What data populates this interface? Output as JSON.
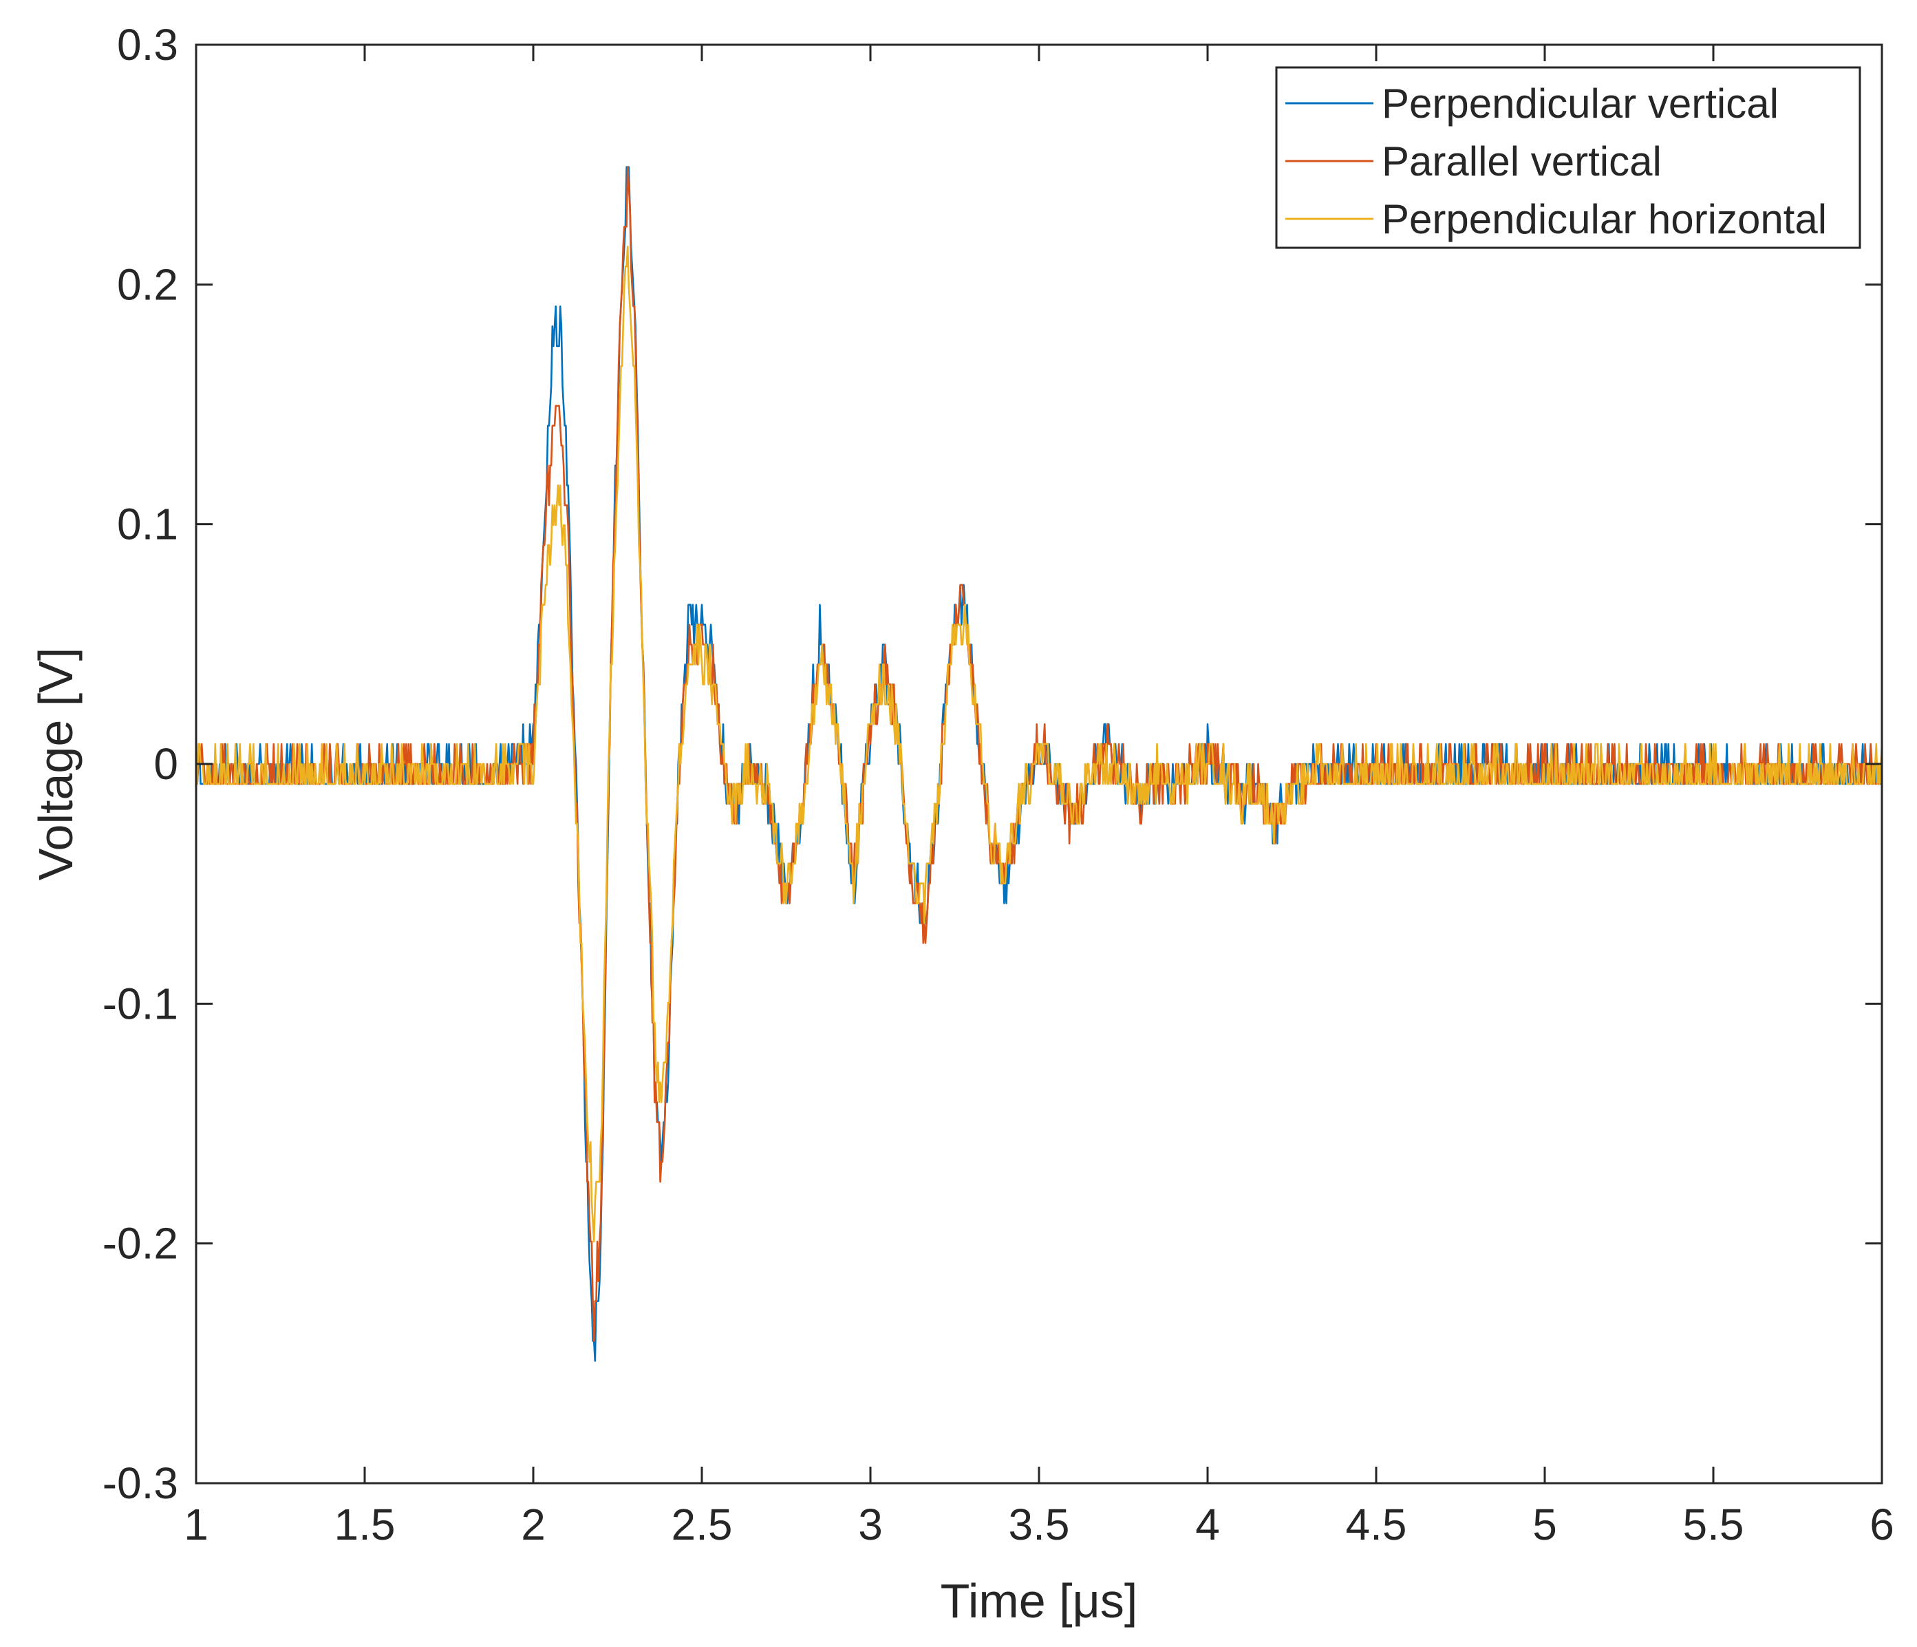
{
  "chart_data": {
    "type": "line",
    "title": "",
    "xlabel": "Time [μs]",
    "ylabel": "Voltage [V]",
    "xlim": [
      1,
      6
    ],
    "ylim": [
      -0.3,
      0.3
    ],
    "xticks": [
      1,
      1.5,
      2,
      2.5,
      3,
      3.5,
      4,
      4.5,
      5,
      5.5,
      6
    ],
    "xtick_labels": [
      "1",
      "1.5",
      "2",
      "2.5",
      "3",
      "3.5",
      "4",
      "4.5",
      "5",
      "5.5",
      "6"
    ],
    "yticks": [
      -0.3,
      -0.2,
      -0.1,
      0,
      0.1,
      0.2,
      0.3
    ],
    "ytick_labels": [
      "-0.3",
      "-0.2",
      "-0.1",
      "0",
      "0.1",
      "0.2",
      "0.3"
    ],
    "grid": false,
    "legend_position": "top-right",
    "series": [
      {
        "name": "Perpendicular vertical",
        "color": "#0072bd",
        "x": [
          1.0,
          1.9,
          1.95,
          2.0,
          2.03,
          2.06,
          2.08,
          2.1,
          2.13,
          2.16,
          2.18,
          2.2,
          2.23,
          2.26,
          2.28,
          2.3,
          2.33,
          2.36,
          2.38,
          2.4,
          2.43,
          2.46,
          2.5,
          2.53,
          2.57,
          2.6,
          2.64,
          2.7,
          2.75,
          2.8,
          2.85,
          2.9,
          2.95,
          3.0,
          3.04,
          3.08,
          3.12,
          3.16,
          3.2,
          3.24,
          3.28,
          3.32,
          3.36,
          3.4,
          3.45,
          3.5,
          3.55,
          3.6,
          3.65,
          3.7,
          3.75,
          3.8,
          3.85,
          3.9,
          4.0,
          4.05,
          4.1,
          4.15,
          4.2,
          4.25,
          4.3,
          4.8,
          4.85,
          4.9,
          6.0
        ],
        "y": [
          0.0,
          0.0,
          0.008,
          0.01,
          0.1,
          0.185,
          0.19,
          0.13,
          -0.02,
          -0.17,
          -0.24,
          -0.2,
          0.05,
          0.2,
          0.255,
          0.2,
          0.02,
          -0.13,
          -0.165,
          -0.12,
          0.0,
          0.06,
          0.07,
          0.05,
          0.0,
          -0.015,
          0.005,
          -0.01,
          -0.05,
          -0.01,
          0.062,
          0.02,
          -0.048,
          0.02,
          0.048,
          0.02,
          -0.04,
          -0.06,
          -0.01,
          0.06,
          0.072,
          0.02,
          -0.03,
          -0.048,
          -0.01,
          0.012,
          0.0,
          -0.018,
          0.0,
          0.015,
          0.0,
          -0.01,
          0.0,
          -0.005,
          0.008,
          0.0,
          -0.01,
          -0.005,
          -0.02,
          -0.005,
          0.0,
          0.0,
          0.008,
          0.0,
          0.0
        ]
      },
      {
        "name": "Parallel vertical",
        "color": "#d95319",
        "x": [
          1.0,
          1.9,
          1.95,
          2.0,
          2.03,
          2.06,
          2.08,
          2.1,
          2.13,
          2.16,
          2.18,
          2.2,
          2.23,
          2.26,
          2.28,
          2.3,
          2.33,
          2.36,
          2.38,
          2.4,
          2.43,
          2.46,
          2.5,
          2.53,
          2.57,
          2.6,
          2.64,
          2.7,
          2.75,
          2.8,
          2.85,
          2.9,
          2.95,
          3.0,
          3.04,
          3.08,
          3.12,
          3.16,
          3.2,
          3.24,
          3.28,
          3.32,
          3.36,
          3.4,
          3.45,
          3.5,
          3.55,
          3.6,
          3.65,
          3.7,
          3.75,
          3.8,
          3.85,
          3.9,
          4.0,
          4.05,
          4.1,
          4.15,
          4.2,
          4.25,
          4.3,
          4.8,
          4.85,
          4.9,
          6.0
        ],
        "y": [
          0.0,
          0.0,
          0.006,
          0.008,
          0.09,
          0.15,
          0.15,
          0.11,
          -0.02,
          -0.16,
          -0.225,
          -0.19,
          0.05,
          0.2,
          0.248,
          0.19,
          0.02,
          -0.13,
          -0.168,
          -0.12,
          0.0,
          0.055,
          0.055,
          0.045,
          0.0,
          -0.015,
          0.005,
          -0.01,
          -0.055,
          -0.01,
          0.055,
          0.02,
          -0.045,
          0.02,
          0.045,
          0.02,
          -0.045,
          -0.064,
          -0.01,
          0.06,
          0.07,
          0.02,
          -0.03,
          -0.044,
          -0.01,
          0.016,
          0.0,
          -0.022,
          0.0,
          0.01,
          0.0,
          -0.01,
          0.0,
          -0.005,
          0.008,
          0.0,
          -0.01,
          -0.005,
          -0.02,
          -0.005,
          0.0,
          0.0,
          0.008,
          0.0,
          0.0
        ]
      },
      {
        "name": "Perpendicular horizontal",
        "color": "#edb120",
        "x": [
          1.0,
          1.9,
          1.95,
          2.0,
          2.03,
          2.06,
          2.08,
          2.1,
          2.13,
          2.16,
          2.18,
          2.2,
          2.23,
          2.26,
          2.28,
          2.3,
          2.33,
          2.36,
          2.38,
          2.4,
          2.43,
          2.46,
          2.5,
          2.53,
          2.57,
          2.6,
          2.64,
          2.7,
          2.75,
          2.8,
          2.85,
          2.9,
          2.95,
          3.0,
          3.04,
          3.08,
          3.12,
          3.16,
          3.2,
          3.24,
          3.28,
          3.32,
          3.36,
          3.4,
          3.45,
          3.5,
          3.55,
          3.6,
          3.65,
          3.7,
          3.75,
          3.8,
          3.85,
          3.9,
          4.0,
          4.05,
          4.1,
          4.15,
          4.2,
          4.25,
          4.3,
          4.8,
          4.85,
          4.9,
          6.0
        ],
        "y": [
          0.0,
          0.0,
          0.004,
          0.006,
          0.07,
          0.11,
          0.118,
          0.08,
          -0.02,
          -0.14,
          -0.19,
          -0.16,
          0.04,
          0.17,
          0.215,
          0.17,
          0.02,
          -0.11,
          -0.14,
          -0.1,
          0.0,
          0.05,
          0.05,
          0.04,
          0.0,
          -0.015,
          0.005,
          -0.01,
          -0.05,
          -0.01,
          0.05,
          0.02,
          -0.045,
          0.02,
          0.042,
          0.02,
          -0.04,
          -0.055,
          -0.01,
          0.055,
          0.065,
          0.02,
          -0.03,
          -0.04,
          -0.01,
          0.01,
          0.0,
          -0.015,
          0.0,
          0.008,
          0.0,
          -0.01,
          0.0,
          -0.005,
          0.006,
          0.0,
          -0.01,
          -0.005,
          -0.018,
          -0.005,
          0.0,
          0.0,
          0.005,
          0.0,
          0.0
        ]
      }
    ]
  }
}
